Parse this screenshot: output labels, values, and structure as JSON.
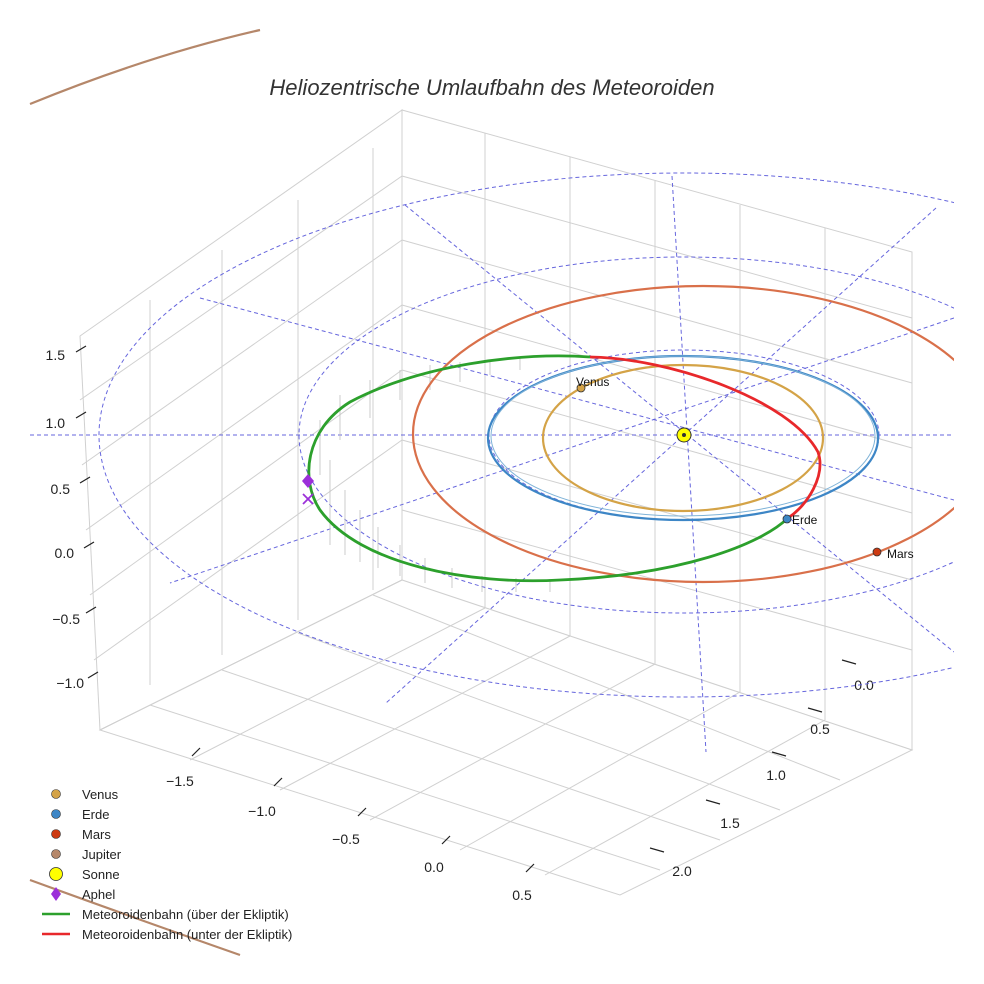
{
  "chart_data": {
    "type": "3d-orbit",
    "title": "Heliozentrische Umlaufbahn des Meteoroiden",
    "x_ticks": [
      -1.5,
      -1.0,
      -0.5,
      0.0,
      0.5
    ],
    "y_ticks": [
      0.0,
      0.5,
      1.0,
      1.5,
      2.0
    ],
    "z_ticks": [
      -1.0,
      -0.5,
      0.0,
      0.5,
      1.0,
      1.5
    ],
    "x_tick_labels": [
      "−1.5",
      "−1.0",
      "−0.5",
      "0.0",
      "0.5"
    ],
    "y_tick_labels": [
      "0.0",
      "0.5",
      "1.0",
      "1.5",
      "2.0"
    ],
    "z_tick_labels": [
      "−1.0",
      "−0.5",
      "0.0",
      "0.5",
      "1.0",
      "1.5"
    ],
    "grid": true,
    "legend_position": "bottom-left",
    "planets": [
      {
        "name": "Venus",
        "orbit_radius_au": 0.72,
        "x": -0.48,
        "y": -0.54,
        "color": "#d4a347",
        "label": "Venus"
      },
      {
        "name": "Erde",
        "orbit_radius_au": 1.0,
        "x": 0.55,
        "y": 0.84,
        "color": "#3d86c6",
        "label": "Erde"
      },
      {
        "name": "Mars",
        "orbit_radius_au": 1.52,
        "x": 1.05,
        "y": 1.12,
        "color": "#d9704a",
        "label": "Mars"
      },
      {
        "name": "Jupiter",
        "orbit_radius_au": 5.2,
        "color": "#b5876a"
      }
    ],
    "sun": {
      "name": "Sonne",
      "x": 0,
      "y": 0,
      "z": 0,
      "color": "#ffff00"
    },
    "aphelion": {
      "name": "Aphel",
      "color": "#9b30d9"
    },
    "meteoroid_orbit": {
      "above_label": "Meteoroidenbahn (über der Ekliptik)",
      "below_label": "Meteoroidenbahn (unter der Ekliptik)",
      "above_color": "#2ca02c",
      "below_color": "#e8282b"
    },
    "legend": [
      {
        "label": "Venus",
        "marker": "circle",
        "color": "#d4a347"
      },
      {
        "label": "Erde",
        "marker": "circle",
        "color": "#3d86c6"
      },
      {
        "label": "Mars",
        "marker": "circle",
        "color": "#d9704a"
      },
      {
        "label": "Jupiter",
        "marker": "circle",
        "color": "#b5876a"
      },
      {
        "label": "Sonne",
        "marker": "big-circle",
        "color": "#ffff00"
      },
      {
        "label": "Aphel",
        "marker": "diamond",
        "color": "#9b30d9"
      },
      {
        "label": "Meteoroidenbahn (über der Ekliptik)",
        "marker": "line",
        "color": "#2ca02c"
      },
      {
        "label": "Meteoroidenbahn (unter der Ekliptik)",
        "marker": "line",
        "color": "#e8282b"
      }
    ]
  }
}
